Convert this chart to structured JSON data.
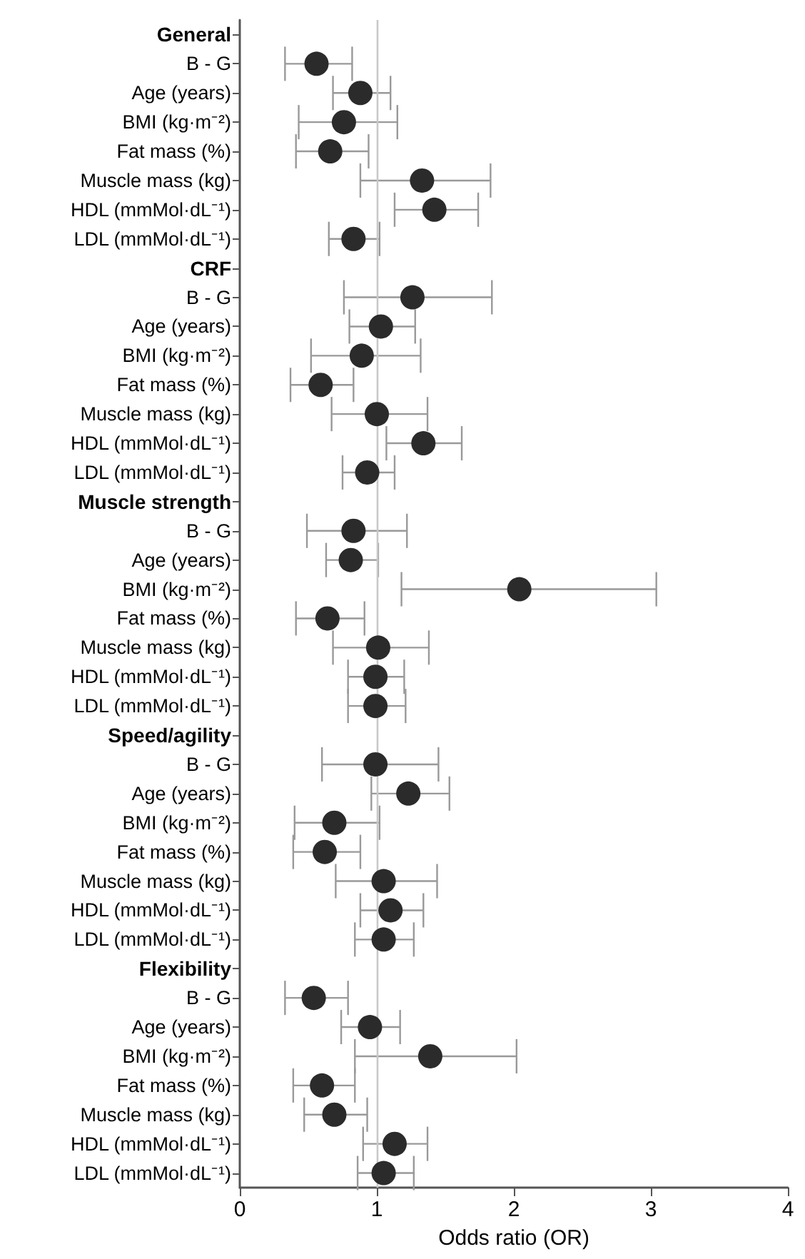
{
  "chart_data": {
    "type": "scatter",
    "xlabel": "Odds ratio (OR)",
    "categories": [
      "General",
      "B - G",
      "Age (years)",
      "BMI (kg·m⁻²)",
      "Fat mass (%)",
      "Muscle mass (kg)",
      "HDL (mmMol·dL⁻¹)",
      "LDL (mmMol·dL⁻¹)",
      "CRF",
      "B - G",
      "Age (years)",
      "BMI (kg·m⁻²)",
      "Fat mass (%)",
      "Muscle mass (kg)",
      "HDL (mmMol·dL⁻¹)",
      "LDL (mmMol·dL⁻¹)",
      "Muscle strength",
      "B - G",
      "Age (years)",
      "BMI (kg·m⁻²)",
      "Fat mass (%)",
      "Muscle mass (kg)",
      "HDL (mmMol·dL⁻¹)",
      "LDL (mmMol·dL⁻¹)",
      "Speed/agility",
      "B - G",
      "Age (years)",
      "BMI (kg·m⁻²)",
      "Fat mass (%)",
      "Muscle mass (kg)",
      "HDL (mmMol·dL⁻¹)",
      "LDL (mmMol·dL⁻¹)",
      "Flexibility",
      "B - G",
      "Age (years)",
      "BMI (kg·m⁻²)",
      "Fat mass (%)",
      "Muscle mass (kg)",
      "HDL (mmMol·dL⁻¹)",
      "LDL (mmMol·dL⁻¹)"
    ],
    "orientation": "horizontal",
    "values": [
      null,
      0.56,
      0.88,
      0.76,
      0.66,
      1.33,
      1.42,
      0.83,
      null,
      1.26,
      1.03,
      0.89,
      0.59,
      1.0,
      1.34,
      0.93,
      null,
      0.83,
      0.81,
      2.04,
      0.64,
      1.01,
      0.99,
      0.99,
      null,
      0.99,
      1.23,
      0.69,
      0.62,
      1.05,
      1.1,
      1.05,
      null,
      0.54,
      0.95,
      1.39,
      0.6,
      0.69,
      1.13,
      1.05
    ],
    "errors": [
      null,
      [
        0.33,
        0.82
      ],
      [
        0.68,
        1.1
      ],
      [
        0.43,
        1.15
      ],
      [
        0.41,
        0.94
      ],
      [
        0.88,
        1.83
      ],
      [
        1.13,
        1.74
      ],
      [
        0.65,
        1.02
      ],
      null,
      [
        0.76,
        1.84
      ],
      [
        0.8,
        1.28
      ],
      [
        0.52,
        1.32
      ],
      [
        0.37,
        0.83
      ],
      [
        0.67,
        1.37
      ],
      [
        1.07,
        1.62
      ],
      [
        0.75,
        1.13
      ],
      null,
      [
        0.49,
        1.22
      ],
      [
        0.63,
        1.01
      ],
      [
        1.18,
        3.04
      ],
      [
        0.41,
        0.91
      ],
      [
        0.68,
        1.38
      ],
      [
        0.79,
        1.2
      ],
      [
        0.79,
        1.21
      ],
      null,
      [
        0.6,
        1.45
      ],
      [
        0.96,
        1.53
      ],
      [
        0.4,
        1.02
      ],
      [
        0.39,
        0.88
      ],
      [
        0.7,
        1.44
      ],
      [
        0.88,
        1.34
      ],
      [
        0.84,
        1.27
      ],
      null,
      [
        0.33,
        0.79
      ],
      [
        0.74,
        1.17
      ],
      [
        0.84,
        2.02
      ],
      [
        0.39,
        0.84
      ],
      [
        0.47,
        0.93
      ],
      [
        0.9,
        1.37
      ],
      [
        0.86,
        1.27
      ]
    ],
    "color": "#2b2b2b",
    "marker": "circle",
    "xlim": [
      0,
      4
    ],
    "xticks": [
      0,
      1,
      2,
      3,
      4
    ],
    "grid": false,
    "ref_lines": [
      {
        "axis": "x",
        "value": 1,
        "color": "#c8c8c8"
      }
    ]
  }
}
